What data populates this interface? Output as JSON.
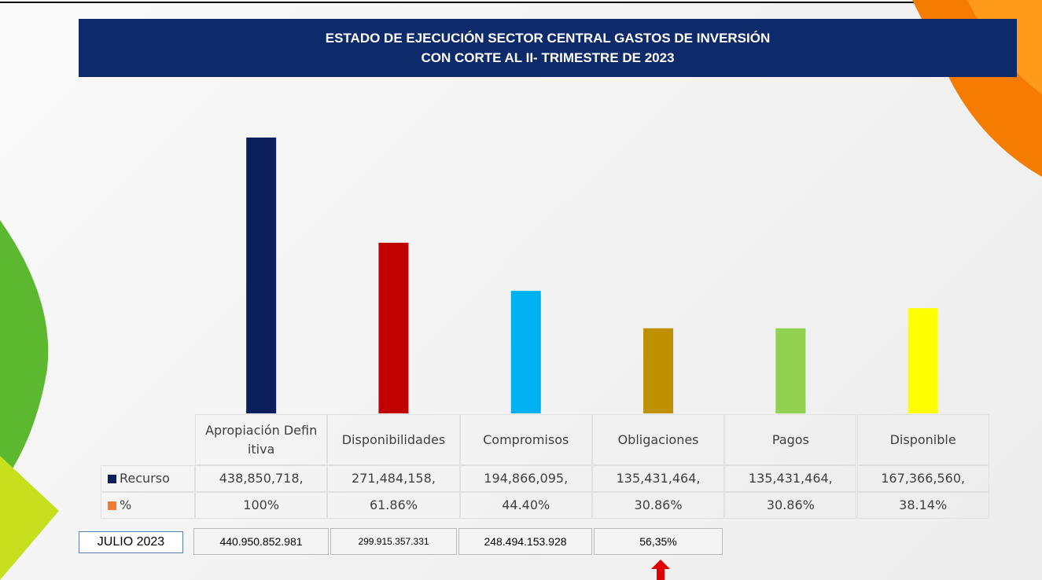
{
  "chart_data": {
    "type": "bar",
    "title_lines": [
      "ESTADO DE EJECUCIÓN SECTOR CENTRAL GASTOS DE INVERSIÓN",
      "CON CORTE AL II- TRIMESTRE DE 2023"
    ],
    "categories": [
      "Apropiación Definitiva",
      "Disponibilidades",
      "Compromisos",
      "Obligaciones",
      "Pagos",
      "Disponible"
    ],
    "series": [
      {
        "name": "Recurso",
        "color": "#0b1f5c",
        "colors": [
          "#0b1f5c",
          "#c00000",
          "#00b0f0",
          "#bf9000",
          "#92d050",
          "#ffff00"
        ],
        "values": [
          438850718,
          271484158,
          194866095,
          135431464,
          135431464,
          167366560
        ],
        "value_labels": [
          "438,850,718,",
          "271,484,158,",
          "194,866,095,",
          "135,431,464,",
          "135,431,464,",
          "167,366,560,"
        ]
      },
      {
        "name": "%",
        "color": "#ed7d31",
        "values": [
          100,
          61.86,
          44.4,
          30.86,
          30.86,
          38.14
        ],
        "value_labels": [
          "100%",
          "61.86%",
          "44.40%",
          "30.86%",
          "30.86%",
          "38.14%"
        ]
      }
    ]
  },
  "comparison": {
    "label": "JULIO 2023",
    "cells": [
      "440.950.852.981",
      "299.915.357.331",
      "248.494.153.928",
      "56,35%"
    ]
  }
}
